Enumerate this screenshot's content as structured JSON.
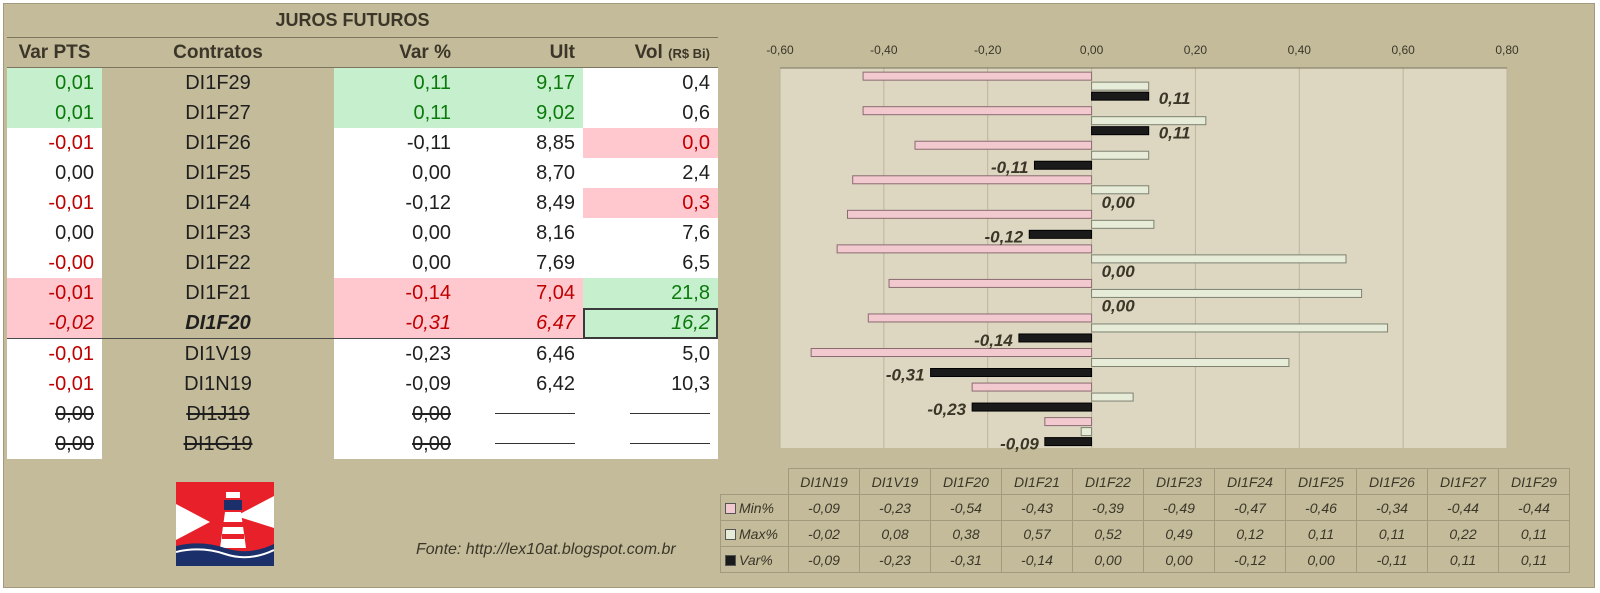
{
  "title": "JUROS FUTUROS",
  "columns": {
    "var_pts": "Var PTS",
    "contratos": "Contratos",
    "var_pct": "Var %",
    "ult": "Ult",
    "vol": "Vol",
    "vol_unit": "(R$ Bi)"
  },
  "rows": [
    {
      "var_pts": "0,01",
      "contrato": "DI1F29",
      "var_pct": "0,11",
      "ult": "9,17",
      "vol": "0,4",
      "var_pts_bg": "g",
      "var_pts_color": "tg",
      "pct_bg": "g",
      "pct_color": "tg",
      "ult_bg": "g",
      "ult_color": "tg",
      "vol_bg": "",
      "vol_color": "tn"
    },
    {
      "var_pts": "0,01",
      "contrato": "DI1F27",
      "var_pct": "0,11",
      "ult": "9,02",
      "vol": "0,6",
      "var_pts_bg": "g",
      "var_pts_color": "tg",
      "pct_bg": "g",
      "pct_color": "tg",
      "ult_bg": "g",
      "ult_color": "tg",
      "vol_bg": "",
      "vol_color": "tn"
    },
    {
      "var_pts": "-0,01",
      "contrato": "DI1F26",
      "var_pct": "-0,11",
      "ult": "8,85",
      "vol": "0,0",
      "var_pts_bg": "",
      "var_pts_color": "tr",
      "pct_bg": "",
      "pct_color": "tn",
      "ult_bg": "",
      "ult_color": "tn",
      "vol_bg": "r",
      "vol_color": "tr"
    },
    {
      "var_pts": "0,00",
      "contrato": "DI1F25",
      "var_pct": "0,00",
      "ult": "8,70",
      "vol": "2,4",
      "var_pts_bg": "",
      "var_pts_color": "tn",
      "pct_bg": "",
      "pct_color": "tn",
      "ult_bg": "",
      "ult_color": "tn",
      "vol_bg": "",
      "vol_color": "tn"
    },
    {
      "var_pts": "-0,01",
      "contrato": "DI1F24",
      "var_pct": "-0,12",
      "ult": "8,49",
      "vol": "0,3",
      "var_pts_bg": "",
      "var_pts_color": "tr",
      "pct_bg": "",
      "pct_color": "tn",
      "ult_bg": "",
      "ult_color": "tn",
      "vol_bg": "r",
      "vol_color": "tr"
    },
    {
      "var_pts": "0,00",
      "contrato": "DI1F23",
      "var_pct": "0,00",
      "ult": "8,16",
      "vol": "7,6",
      "var_pts_bg": "",
      "var_pts_color": "tn",
      "pct_bg": "",
      "pct_color": "tn",
      "ult_bg": "",
      "ult_color": "tn",
      "vol_bg": "",
      "vol_color": "tn"
    },
    {
      "var_pts": "-0,00",
      "contrato": "DI1F22",
      "var_pct": "0,00",
      "ult": "7,69",
      "vol": "6,5",
      "var_pts_bg": "",
      "var_pts_color": "tr",
      "pct_bg": "",
      "pct_color": "tn",
      "ult_bg": "",
      "ult_color": "tn",
      "vol_bg": "",
      "vol_color": "tn"
    },
    {
      "var_pts": "-0,01",
      "contrato": "DI1F21",
      "var_pct": "-0,14",
      "ult": "7,04",
      "vol": "21,8",
      "var_pts_bg": "r",
      "var_pts_color": "tr",
      "pct_bg": "r",
      "pct_color": "tr",
      "ult_bg": "r",
      "ult_color": "tr",
      "vol_bg": "g",
      "vol_color": "tg"
    },
    {
      "var_pts": "-0,02",
      "contrato": "DI1F20",
      "var_pct": "-0,31",
      "ult": "6,47",
      "vol": "16,2",
      "var_pts_bg": "r",
      "var_pts_color": "tr",
      "pct_bg": "r",
      "pct_color": "tr",
      "ult_bg": "r",
      "ult_color": "tr",
      "vol_bg": "g",
      "vol_color": "tg",
      "emph": true
    },
    {
      "var_pts": "-0,01",
      "contrato": "DI1V19",
      "var_pct": "-0,23",
      "ult": "6,46",
      "vol": "5,0",
      "var_pts_bg": "",
      "var_pts_color": "tr",
      "pct_bg": "",
      "pct_color": "tn",
      "ult_bg": "",
      "ult_color": "tn",
      "vol_bg": "",
      "vol_color": "tn"
    },
    {
      "var_pts": "-0,01",
      "contrato": "DI1N19",
      "var_pct": "-0,09",
      "ult": "6,42",
      "vol": "10,3",
      "var_pts_bg": "",
      "var_pts_color": "tr",
      "pct_bg": "",
      "pct_color": "tn",
      "ult_bg": "",
      "ult_color": "tn",
      "vol_bg": "",
      "vol_color": "tn"
    },
    {
      "var_pts": "0,00",
      "contrato": "DI1J19",
      "var_pct": "0,00",
      "ult": "",
      "vol": "",
      "var_pts_bg": "",
      "var_pts_color": "tn",
      "pct_bg": "",
      "pct_color": "tn",
      "ult_bg": "",
      "ult_color": "tn",
      "vol_bg": "",
      "vol_color": "tn",
      "struck": true
    },
    {
      "var_pts": "0,00",
      "contrato": "DI1G19",
      "var_pct": "0,00",
      "ult": "",
      "vol": "",
      "var_pts_bg": "",
      "var_pts_color": "tn",
      "pct_bg": "",
      "pct_color": "tn",
      "ult_bg": "",
      "ult_color": "tn",
      "vol_bg": "",
      "vol_color": "tn",
      "struck": true
    }
  ],
  "source": "Fonte: http://lex10at.blogspot.com.br",
  "colors": {
    "positive_bg": "#c6efce",
    "negative_bg": "#ffc7ce",
    "positive_text": "#0a7a0a",
    "negative_text": "#c00000",
    "panel": "#c4bb9b",
    "plot_area": "#ddd7c2",
    "min_series": "#f2c9cf",
    "max_series": "#e6ecd8",
    "var_series": "#1a1a1a",
    "logo_red": "#e8202a",
    "logo_navy": "#1b2f6b"
  },
  "chart_data": {
    "type": "bar",
    "orientation": "horizontal",
    "categories": [
      "DI1N19",
      "DI1V19",
      "DI1F20",
      "DI1F21",
      "DI1F22",
      "DI1F23",
      "DI1F24",
      "DI1F25",
      "DI1F26",
      "DI1F27",
      "DI1F29"
    ],
    "category_labels": [
      "DI1N19",
      "DI1V19",
      "DI1F20",
      "DI1F21",
      "DI1F22",
      "DI1F23",
      "DI1F24",
      "DI1F25",
      "DI1F26",
      "DI1F27",
      "DI1F29"
    ],
    "series": [
      {
        "name": "Min%",
        "values": [
          -0.09,
          -0.23,
          -0.54,
          -0.43,
          -0.39,
          -0.49,
          -0.47,
          -0.46,
          -0.34,
          -0.44,
          -0.44
        ],
        "labels": [
          "-0,09",
          "-0,23",
          "-0,54",
          "-0,43",
          "-0,39",
          "-0,49",
          "-0,47",
          "-0,46",
          "-0,34",
          "-0,44",
          "-0,44"
        ]
      },
      {
        "name": "Max%",
        "values": [
          -0.02,
          0.08,
          0.38,
          0.57,
          0.52,
          0.49,
          0.12,
          0.11,
          0.11,
          0.22,
          0.11
        ],
        "labels": [
          "-0,02",
          "0,08",
          "0,38",
          "0,57",
          "0,52",
          "0,49",
          "0,12",
          "0,11",
          "0,11",
          "0,22",
          "0,11"
        ]
      },
      {
        "name": "Var%",
        "values": [
          -0.09,
          -0.23,
          -0.31,
          -0.14,
          0.0,
          0.0,
          -0.12,
          0.0,
          -0.11,
          0.11,
          0.11
        ],
        "labels": [
          "-0,09",
          "-0,23",
          "-0,31",
          "-0,14",
          "0,00",
          "0,00",
          "-0,12",
          "0,00",
          "-0,11",
          "0,11",
          "0,11"
        ]
      }
    ],
    "xlim": [
      -0.6,
      0.8
    ],
    "ticks": [
      -0.6,
      -0.4,
      -0.2,
      0.0,
      0.2,
      0.4,
      0.6,
      0.8
    ],
    "tick_labels": [
      "-0,60",
      "-0,40",
      "-0,20",
      "0,00",
      "0,20",
      "0,40",
      "0,60",
      "0,80"
    ],
    "axis_position": "top",
    "category_order": "bottom-to-top",
    "grid": true,
    "data_labels_series": "Var%",
    "legend": "data-table"
  }
}
